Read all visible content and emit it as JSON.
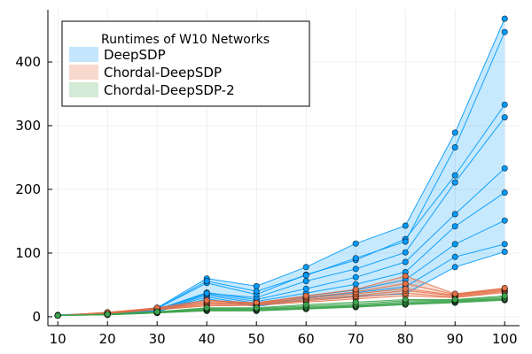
{
  "chart_data": {
    "type": "line",
    "x": [
      10,
      20,
      30,
      40,
      50,
      60,
      70,
      80,
      90,
      100
    ],
    "xticks": [
      "10",
      "20",
      "30",
      "40",
      "50",
      "60",
      "70",
      "80",
      "90",
      "100"
    ],
    "yticks": [
      "0",
      "100",
      "200",
      "300",
      "400"
    ],
    "ytick_values": [
      0,
      100,
      200,
      300,
      400
    ],
    "xlim": [
      8,
      103
    ],
    "ylim": [
      -14,
      482
    ],
    "grid": true,
    "legend_position": "top-left",
    "legend_title": "Runtimes of W10 Networks",
    "series": [
      {
        "name": "DeepSDP",
        "color": "#009AFA",
        "fill": "#C3E6FD",
        "runs": [
          [
            2,
            4,
            8,
            28,
            16,
            27,
            32,
            36,
            78,
            102
          ],
          [
            2,
            4,
            9,
            31,
            18,
            30,
            38,
            47,
            94,
            114
          ],
          [
            2,
            4,
            9,
            34,
            21,
            33,
            42,
            58,
            114,
            151
          ],
          [
            2,
            5,
            10,
            36,
            24,
            37,
            51,
            70,
            142,
            195
          ],
          [
            2,
            5,
            11,
            38,
            27,
            44,
            62,
            86,
            161,
            233
          ],
          [
            2,
            5,
            12,
            37,
            30,
            56,
            75,
            101,
            211,
            313
          ],
          [
            2,
            6,
            13,
            53,
            35,
            66,
            89,
            122,
            222,
            333
          ],
          [
            3,
            6,
            14,
            60,
            48,
            78,
            115,
            143,
            289,
            468
          ],
          [
            2,
            6,
            13,
            56,
            40,
            65,
            92,
            118,
            266,
            447
          ]
        ]
      },
      {
        "name": "Chordal-DeepSDP",
        "color": "#E26F46",
        "fill": "#F8D8CC",
        "runs": [
          [
            2,
            5,
            11,
            17,
            18,
            23,
            28,
            33,
            30,
            38
          ],
          [
            2,
            6,
            11,
            19,
            19,
            25,
            31,
            37,
            31,
            40
          ],
          [
            2,
            6,
            12,
            21,
            20,
            27,
            33,
            41,
            33,
            41
          ],
          [
            2,
            6,
            12,
            22,
            21,
            29,
            36,
            44,
            34,
            43
          ],
          [
            2,
            7,
            13,
            24,
            22,
            31,
            39,
            52,
            35,
            44
          ],
          [
            2,
            7,
            14,
            26,
            22,
            33,
            43,
            64,
            36,
            45
          ]
        ]
      },
      {
        "name": "Chordal-DeepSDP-2",
        "color": "#3DA44D",
        "fill": "#D3EBD6",
        "runs": [
          [
            2,
            3,
            6,
            9,
            9,
            12,
            15,
            19,
            22,
            26
          ],
          [
            2,
            3,
            6,
            10,
            10,
            13,
            16,
            20,
            23,
            27
          ],
          [
            2,
            3,
            7,
            11,
            11,
            14,
            17,
            21,
            24,
            28
          ],
          [
            2,
            4,
            7,
            12,
            12,
            15,
            18,
            23,
            25,
            29
          ],
          [
            2,
            4,
            8,
            13,
            13,
            17,
            20,
            25,
            26,
            31
          ],
          [
            2,
            4,
            8,
            14,
            14,
            19,
            23,
            27,
            27,
            33
          ]
        ]
      }
    ]
  }
}
